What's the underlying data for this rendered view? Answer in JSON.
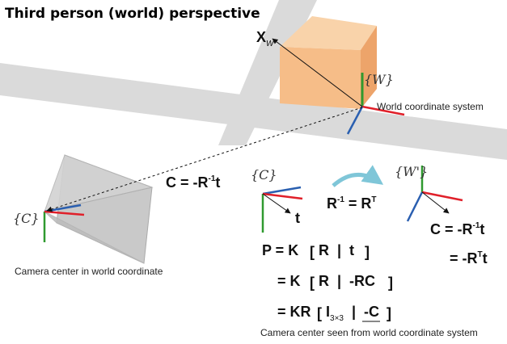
{
  "title": "Third person (world) perspective",
  "world": {
    "point_label": "X",
    "point_subscript": "W",
    "frame_label": "{W}",
    "frame_caption": "World coordinate system"
  },
  "camera": {
    "frame_label": "{C}",
    "caption": "Camera center in world coordinate"
  },
  "center_equation": {
    "lhs": "C = -R",
    "sup": "-1",
    "rhs": "t"
  },
  "camera_frame_small": {
    "label": "{C}",
    "vector_label": "t"
  },
  "rotation_identity": {
    "lhs": "R",
    "lhs_sup": "-1",
    "eq": " = R",
    "rhs_sup": "T"
  },
  "rotated_frame": {
    "label": "{W'}"
  },
  "derivation": {
    "line1_lhs": "C = -R",
    "line1_sup": "-1",
    "line1_rhs": "t",
    "line2_lhs": "= -R",
    "line2_sup": "T",
    "line2_rhs": "t"
  },
  "projection": {
    "line1_prefix": "P = K",
    "line1_inner": "R  |  t",
    "line2_prefix": "= K",
    "line2_inner": "R  |  -RC",
    "line3_prefix": "= KR",
    "line3_I": "I",
    "line3_sub": "3×3",
    "line3_tail": "  |  -C"
  },
  "footnote": "Camera center seen from world coordinate system",
  "colors": {
    "road": "#d9d9d9",
    "box_front": "#f7c08c",
    "box_top": "#f9d2a8",
    "box_side": "#eba56a",
    "axis_x": "#e0202a",
    "axis_y": "#2f9a2f",
    "axis_z": "#2a5fb0",
    "arrow_curve": "#7fc6d8"
  }
}
